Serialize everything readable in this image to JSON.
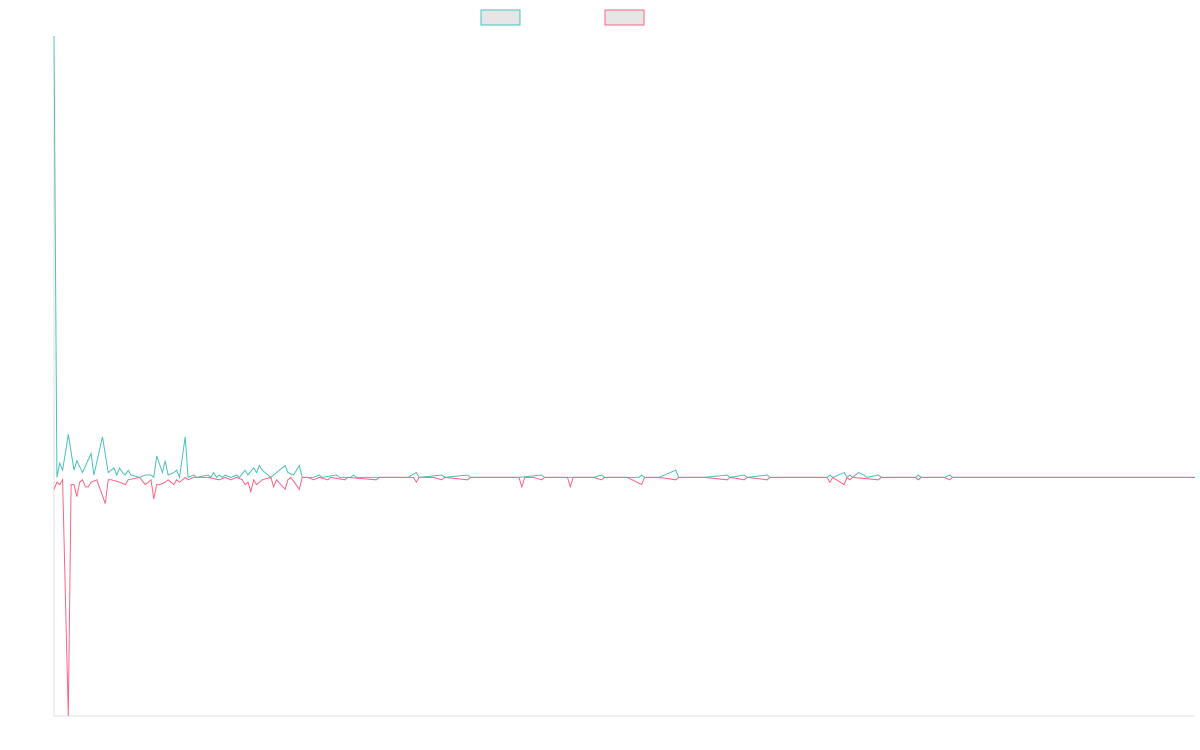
{
  "chart_data": {
    "type": "line",
    "title": "",
    "xlabel": "",
    "ylabel": "",
    "grid": false,
    "legend_position": "top-center",
    "x_range": [
      0,
      400
    ],
    "y_range": [
      -100,
      185
    ],
    "series": [
      {
        "color": "#4bc0c0",
        "legend_fill": "#e6e6e6",
        "points": [
          [
            0,
            185
          ],
          [
            1,
            0
          ],
          [
            2,
            6
          ],
          [
            3,
            3
          ],
          [
            5,
            18
          ],
          [
            7,
            3
          ],
          [
            8,
            7
          ],
          [
            10,
            2
          ],
          [
            13,
            10
          ],
          [
            14,
            1
          ],
          [
            17,
            17
          ],
          [
            19,
            2
          ],
          [
            21,
            4
          ],
          [
            22,
            1
          ],
          [
            23,
            4
          ],
          [
            24,
            2
          ],
          [
            25,
            1
          ],
          [
            26,
            3
          ],
          [
            27,
            1
          ],
          [
            30,
            0
          ],
          [
            32,
            1
          ],
          [
            34,
            1
          ],
          [
            35,
            0
          ],
          [
            36,
            9
          ],
          [
            38,
            2
          ],
          [
            39,
            7
          ],
          [
            40,
            1
          ],
          [
            42,
            2
          ],
          [
            43,
            3
          ],
          [
            44,
            0
          ],
          [
            46,
            17
          ],
          [
            47,
            0
          ],
          [
            49,
            1
          ],
          [
            50,
            0
          ],
          [
            54,
            1
          ],
          [
            55,
            0
          ],
          [
            56,
            2
          ],
          [
            57,
            0
          ],
          [
            58,
            1
          ],
          [
            59,
            0
          ],
          [
            60,
            1
          ],
          [
            62,
            0
          ],
          [
            64,
            1
          ],
          [
            65,
            0
          ],
          [
            67,
            3
          ],
          [
            68,
            1
          ],
          [
            70,
            4
          ],
          [
            71,
            2
          ],
          [
            72,
            5
          ],
          [
            73,
            3
          ],
          [
            76,
            0
          ],
          [
            81,
            5
          ],
          [
            82,
            2
          ],
          [
            84,
            1
          ],
          [
            86,
            5
          ],
          [
            87,
            0
          ],
          [
            90,
            0
          ],
          [
            91,
            0
          ],
          [
            93,
            1
          ],
          [
            94,
            0
          ],
          [
            99,
            1
          ],
          [
            100,
            0
          ],
          [
            104,
            0
          ],
          [
            105,
            1
          ],
          [
            106,
            0
          ],
          [
            115,
            0
          ],
          [
            124,
            0
          ],
          [
            127,
            2
          ],
          [
            128,
            0
          ],
          [
            136,
            1
          ],
          [
            137,
            0
          ],
          [
            145,
            1
          ],
          [
            146,
            0
          ],
          [
            163,
            0
          ],
          [
            171,
            1
          ],
          [
            172,
            0
          ],
          [
            180,
            0
          ],
          [
            182,
            0
          ],
          [
            183,
            0
          ],
          [
            189,
            0
          ],
          [
            192,
            1
          ],
          [
            193,
            0
          ],
          [
            205,
            0
          ],
          [
            206,
            1
          ],
          [
            207,
            0
          ],
          [
            212,
            0
          ],
          [
            218,
            3
          ],
          [
            219,
            0
          ],
          [
            228,
            0
          ],
          [
            236,
            1
          ],
          [
            237,
            0
          ],
          [
            242,
            1
          ],
          [
            243,
            0
          ],
          [
            250,
            1
          ],
          [
            251,
            0
          ],
          [
            271,
            0
          ],
          [
            272,
            1
          ],
          [
            273,
            0
          ],
          [
            277,
            2
          ],
          [
            278,
            0
          ],
          [
            279,
            1
          ],
          [
            280,
            0
          ],
          [
            282,
            2
          ],
          [
            284,
            1
          ],
          [
            285,
            0
          ],
          [
            289,
            1
          ],
          [
            290,
            0
          ],
          [
            302,
            0
          ],
          [
            303,
            1
          ],
          [
            304,
            0
          ],
          [
            311,
            0
          ],
          [
            312,
            0
          ],
          [
            314,
            1
          ],
          [
            315,
            0
          ],
          [
            320,
            0
          ],
          [
            400,
            0
          ]
        ]
      },
      {
        "color": "#ff6384",
        "legend_fill": "#e6e6e6",
        "points": [
          [
            0,
            -5
          ],
          [
            1,
            -2
          ],
          [
            2,
            -3
          ],
          [
            3,
            -1
          ],
          [
            5,
            -100
          ],
          [
            6,
            -3
          ],
          [
            7,
            -3
          ],
          [
            8,
            -8
          ],
          [
            9,
            -2
          ],
          [
            10,
            -1
          ],
          [
            11,
            -4
          ],
          [
            12,
            -4
          ],
          [
            13,
            -2
          ],
          [
            15,
            -1
          ],
          [
            18,
            -11
          ],
          [
            19,
            -1
          ],
          [
            20,
            -1
          ],
          [
            23,
            -2
          ],
          [
            25,
            -3
          ],
          [
            26,
            -1
          ],
          [
            30,
            0
          ],
          [
            32,
            -3
          ],
          [
            34,
            -1
          ],
          [
            35,
            -9
          ],
          [
            36,
            -3
          ],
          [
            37,
            -3
          ],
          [
            39,
            -2
          ],
          [
            40,
            -1
          ],
          [
            42,
            -3
          ],
          [
            43,
            -1
          ],
          [
            44,
            -2
          ],
          [
            46,
            0
          ],
          [
            47,
            -1
          ],
          [
            49,
            0
          ],
          [
            54,
            0
          ],
          [
            58,
            -1
          ],
          [
            60,
            0
          ],
          [
            62,
            -1
          ],
          [
            64,
            0
          ],
          [
            66,
            -1
          ],
          [
            67,
            -3
          ],
          [
            68,
            -2
          ],
          [
            69,
            -6
          ],
          [
            70,
            -1
          ],
          [
            71,
            -3
          ],
          [
            72,
            -2
          ],
          [
            73,
            -1
          ],
          [
            76,
            0
          ],
          [
            77,
            -4
          ],
          [
            78,
            -1
          ],
          [
            81,
            -5
          ],
          [
            82,
            -1
          ],
          [
            83,
            0
          ],
          [
            86,
            -5
          ],
          [
            87,
            0
          ],
          [
            89,
            0
          ],
          [
            91,
            -1
          ],
          [
            93,
            0
          ],
          [
            96,
            -1
          ],
          [
            97,
            0
          ],
          [
            102,
            -1
          ],
          [
            103,
            0
          ],
          [
            113,
            -1
          ],
          [
            114,
            0
          ],
          [
            120,
            0
          ],
          [
            126,
            0
          ],
          [
            127,
            -2
          ],
          [
            128,
            0
          ],
          [
            133,
            0
          ],
          [
            136,
            -1
          ],
          [
            137,
            0
          ],
          [
            145,
            -1
          ],
          [
            146,
            0
          ],
          [
            150,
            0
          ],
          [
            163,
            0
          ],
          [
            164,
            -4
          ],
          [
            165,
            0
          ],
          [
            168,
            0
          ],
          [
            171,
            -1
          ],
          [
            172,
            0
          ],
          [
            180,
            0
          ],
          [
            181,
            -4
          ],
          [
            182,
            0
          ],
          [
            189,
            0
          ],
          [
            192,
            -1
          ],
          [
            193,
            0
          ],
          [
            201,
            0
          ],
          [
            206,
            -3
          ],
          [
            207,
            0
          ],
          [
            212,
            0
          ],
          [
            218,
            -1
          ],
          [
            219,
            0
          ],
          [
            228,
            0
          ],
          [
            236,
            -1
          ],
          [
            237,
            0
          ],
          [
            242,
            -1
          ],
          [
            243,
            0
          ],
          [
            250,
            -1
          ],
          [
            251,
            0
          ],
          [
            271,
            0
          ],
          [
            272,
            -2
          ],
          [
            273,
            0
          ],
          [
            277,
            -3
          ],
          [
            278,
            0
          ],
          [
            279,
            -1
          ],
          [
            280,
            0
          ],
          [
            289,
            -1
          ],
          [
            290,
            0
          ],
          [
            302,
            0
          ],
          [
            303,
            -1
          ],
          [
            304,
            0
          ],
          [
            311,
            0
          ],
          [
            312,
            0
          ],
          [
            314,
            -1
          ],
          [
            315,
            0
          ],
          [
            320,
            0
          ],
          [
            400,
            0
          ]
        ]
      }
    ]
  }
}
